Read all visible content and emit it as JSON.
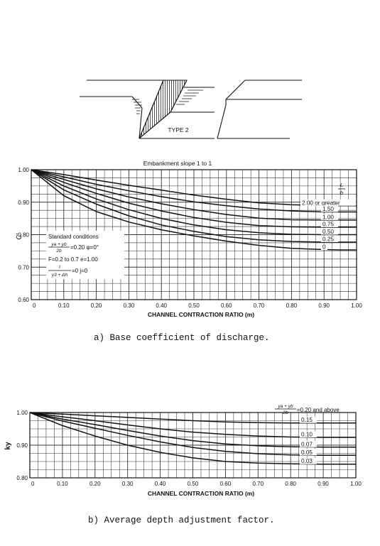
{
  "figure": {
    "diagram_label": "TYPE 2",
    "caption_a": "a) Base coefficient of discharge.",
    "caption_b": "b) Average depth adjustment factor."
  },
  "chart_data": [
    {
      "type": "line",
      "title": "Embankment slope 1 to 1",
      "xlabel": "CHANNEL CONTRACTION RATIO (m)",
      "ylabel": "C'",
      "xlim": [
        0,
        1.0
      ],
      "ylim": [
        0.6,
        1.0
      ],
      "x_ticks": [
        "0",
        "0.10",
        "0.20",
        "0.30",
        "0.40",
        "0.50",
        "0.60",
        "0.70",
        "0.80",
        "0.90",
        "1.00"
      ],
      "y_ticks": [
        "0.60",
        "0.70",
        "0.80",
        "0.90",
        "1.00"
      ],
      "grid": true,
      "legend_title": "L / b",
      "legend_position": "right",
      "x": [
        0,
        0.1,
        0.2,
        0.3,
        0.4,
        0.5,
        0.6,
        0.7,
        0.8,
        0.9,
        0.95
      ],
      "series": [
        {
          "name": "2.00 or greater",
          "values": [
            1.0,
            0.985,
            0.968,
            0.952,
            0.937,
            0.922,
            0.909,
            0.898,
            0.892,
            0.89,
            0.889
          ]
        },
        {
          "name": "1.50",
          "values": [
            1.0,
            0.978,
            0.955,
            0.935,
            0.917,
            0.901,
            0.889,
            0.879,
            0.873,
            0.87,
            0.87
          ]
        },
        {
          "name": "1.00",
          "values": [
            1.0,
            0.97,
            0.941,
            0.916,
            0.895,
            0.877,
            0.862,
            0.851,
            0.846,
            0.845,
            0.845
          ]
        },
        {
          "name": "0.75",
          "values": [
            1.0,
            0.961,
            0.927,
            0.897,
            0.873,
            0.853,
            0.838,
            0.828,
            0.824,
            0.823,
            0.823
          ]
        },
        {
          "name": "0.50",
          "values": [
            1.0,
            0.95,
            0.91,
            0.877,
            0.85,
            0.83,
            0.815,
            0.806,
            0.801,
            0.8,
            0.8
          ]
        },
        {
          "name": "0.25",
          "values": [
            1.0,
            0.938,
            0.894,
            0.858,
            0.83,
            0.81,
            0.794,
            0.784,
            0.779,
            0.777,
            0.777
          ]
        },
        {
          "name": "0",
          "values": [
            1.0,
            0.92,
            0.871,
            0.839,
            0.815,
            0.796,
            0.78,
            0.767,
            0.758,
            0.754,
            0.753
          ]
        }
      ],
      "annotations": {
        "heading": "Standard conditions",
        "line1_frac_num": "ya + yb",
        "line1_frac_den": "2b",
        "line1_rest": "=0.20  φ=0°",
        "line2": "F=0.2 to 0.7  e=1.00",
        "line3_frac_num": "t",
        "line3_frac_den": "y3 + Δh",
        "line3_rest": "=0  j=0"
      }
    },
    {
      "type": "line",
      "title": "",
      "xlabel": "CHANNEL CONTRACTION RATIO (m)",
      "ylabel": "ky",
      "xlim": [
        0,
        1.0
      ],
      "ylim": [
        0.8,
        1.0
      ],
      "x_ticks": [
        "0",
        "0.10",
        "0.20",
        "0.30",
        "0.40",
        "0.50",
        "0.60",
        "0.70",
        "0.80",
        "0.90",
        "1.00"
      ],
      "y_ticks": [
        "0.80",
        "0.90",
        "1.00"
      ],
      "grid": true,
      "legend_title_num": "ya + yb",
      "legend_title_den": "2b",
      "legend_title_rest": "=0.20 and above",
      "legend_position": "right",
      "x": [
        0,
        0.1,
        0.2,
        0.3,
        0.4,
        0.5,
        0.6,
        0.7,
        0.8,
        0.9,
        0.95
      ],
      "series": [
        {
          "name": "0.15",
          "values": [
            1.0,
            0.995,
            0.99,
            0.985,
            0.98,
            0.975,
            0.971,
            0.969,
            0.968,
            0.968,
            0.968
          ]
        },
        {
          "name": "0.10",
          "values": [
            1.0,
            0.987,
            0.975,
            0.962,
            0.95,
            0.94,
            0.933,
            0.928,
            0.925,
            0.924,
            0.924
          ]
        },
        {
          "name": "0.07",
          "values": [
            1.0,
            0.98,
            0.963,
            0.945,
            0.928,
            0.914,
            0.904,
            0.898,
            0.895,
            0.894,
            0.894
          ]
        },
        {
          "name": "0.05",
          "values": [
            1.0,
            0.974,
            0.952,
            0.93,
            0.91,
            0.893,
            0.881,
            0.874,
            0.87,
            0.869,
            0.869
          ]
        },
        {
          "name": "0.03",
          "values": [
            1.0,
            0.96,
            0.928,
            0.9,
            0.878,
            0.861,
            0.85,
            0.845,
            0.843,
            0.842,
            0.842
          ]
        }
      ]
    }
  ]
}
